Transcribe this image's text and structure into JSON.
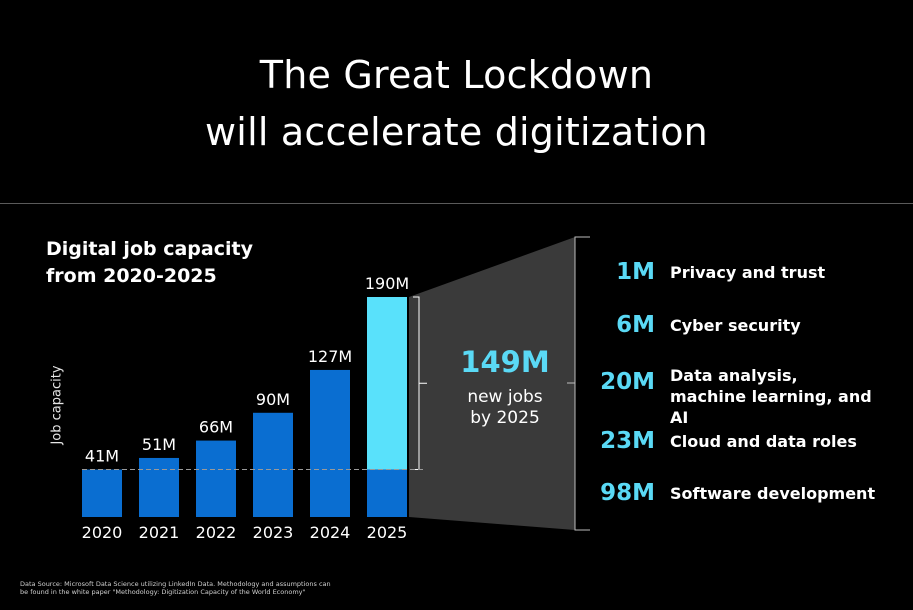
{
  "header": {
    "title_line1": "The Great Lockdown",
    "title_line2": "will accelerate digitization"
  },
  "chart_data": {
    "type": "bar",
    "title": "Digital job capacity\nfrom 2020-2025",
    "title_line1": "Digital job capacity",
    "title_line2": "from 2020-2025",
    "ylabel": "Job capacity",
    "xlabel": "",
    "categories": [
      "2020",
      "2021",
      "2022",
      "2023",
      "2024",
      "2025"
    ],
    "values": [
      41,
      51,
      66,
      90,
      127,
      190
    ],
    "value_labels": [
      "41M",
      "51M",
      "66M",
      "90M",
      "127M",
      "190M"
    ],
    "baseline_value": 41,
    "bar_color": "#0a6ed1",
    "highlight_color": "#59e1fb",
    "highlight": {
      "value": "149M",
      "line1": "new jobs",
      "line2": "by 2025"
    },
    "breakdown": [
      {
        "value": "1M",
        "label": "Privacy and trust"
      },
      {
        "value": "6M",
        "label": "Cyber security"
      },
      {
        "value": "20M",
        "label": "Data analysis, machine learning, and AI"
      },
      {
        "value": "23M",
        "label": "Cloud and data roles"
      },
      {
        "value": "98M",
        "label": "Software development"
      }
    ]
  },
  "footer": {
    "source_line1": "Data Source: Microsoft Data Science utilizing LinkedIn Data. Methodology and assumptions can",
    "source_line2": "be found in the white paper \"Methodology: Digitization Capacity of the World Economy\""
  },
  "colors": {
    "background": "#000000",
    "accent": "#5ad9f5",
    "bar": "#0a6ed1",
    "funnel": "#3a3a3a"
  }
}
